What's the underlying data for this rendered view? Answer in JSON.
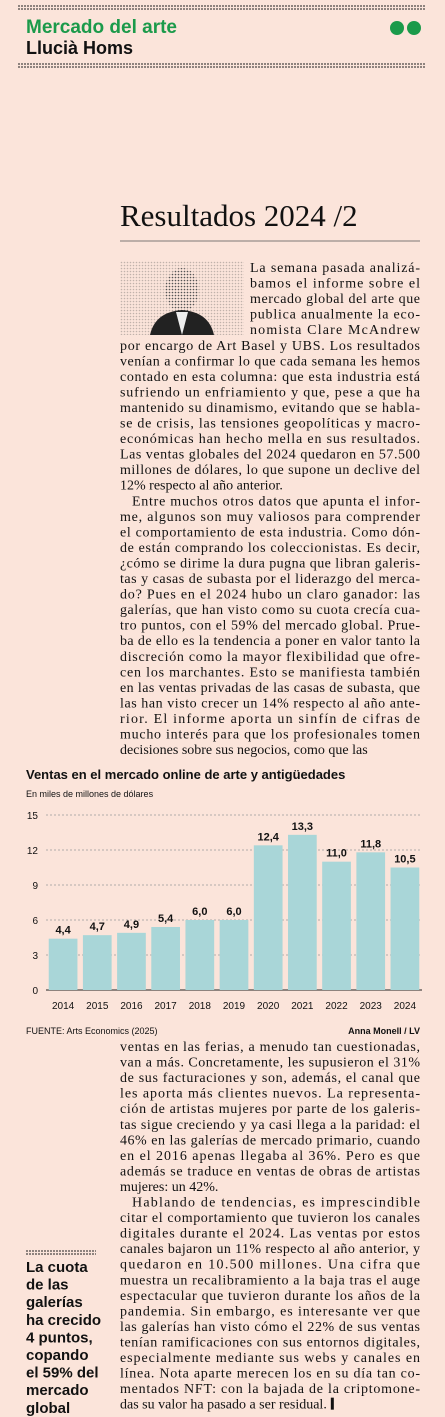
{
  "header": {
    "section": "Mercado del arte",
    "author": "Llucià Homs"
  },
  "article": {
    "title": "Resultados 2024 /2",
    "paragraphs": [
      {
        "lines": [
          "La semana pasada analizá-",
          "bamos el informe sobre el",
          "mercado global del arte que",
          "publica anualmente la eco-",
          "nomista Clare McAndrew",
          "por encargo de Art Basel y UBS. Los resultados",
          "venían a confirmar lo que cada semana les hemos",
          "contado en esta columna: que esta industria está",
          "sufriendo un enfriamiento y que, pese a que ha",
          "mantenido su dinamismo, evitando que se habla-",
          "se de crisis, las tensiones geopolíticas y macro-",
          "económicas han hecho mella en sus resultados.",
          "Las ventas globales del 2024 quedaron en 57.500",
          "millones de dólares, lo que supone un declive del",
          "12% respecto al año anterior."
        ]
      },
      {
        "lines": [
          "Entre muchos otros datos que apunta el infor-",
          "me, algunos son muy valiosos para comprender",
          "el comportamiento de esta industria. Como dón-",
          "de están comprando los coleccionistas. Es decir,",
          "¿cómo se dirime la dura pugna que libran galeris-",
          "tas y casas de subasta por el liderazgo del merca-",
          "do? Pues en el 2024 hubo un claro ganador: las",
          "galerías, que han visto como su cuota crecía cua-",
          "tro puntos, con el 59% del mercado global. Prue-",
          "ba de ello es la tendencia a poner en valor tanto la",
          "discreción como la mayor flexibilidad que ofre-",
          "cen los marchantes. Esto se manifiesta también",
          "en las ventas privadas de las casas de subasta, que",
          "las han visto crecer un 14% respecto al año ante-",
          "rior. El informe aporta un sinfín de cifras de",
          "mucho interés para que los profesionales tomen",
          "decisiones sobre sus negocios, como que las"
        ]
      },
      {
        "lines": [
          "ventas en las ferias, a menudo tan cuestionadas,",
          "van a más. Concretamente, les supusieron el 31%",
          "de sus facturaciones y son, además, el canal que",
          "les aporta más clientes nuevos. La representa-",
          "ción de artistas mujeres por parte de los galeris-",
          "tas sigue creciendo y ya casi llega a la paridad: el",
          "46% en las galerías de mercado primario, cuando",
          "en el 2016 apenas llegaba al 36%. Pero es que",
          "además se traduce en ventas de obras de artistas",
          "mujeres: un 42%."
        ]
      },
      {
        "lines": [
          "Hablando de tendencias, es imprescindible",
          "citar el comportamiento que tuvieron los canales",
          "digitales durante el 2024. Las ventas por estos",
          "canales bajaron un 11% respecto al año anterior, y",
          "quedaron en 10.500 millones. Una cifra que",
          "muestra un recalibramiento a la baja tras el auge",
          "espectacular que tuvieron durante los años de la",
          "pandemia. Sin embargo, es interesante ver que",
          "las galerías han visto cómo el 22% de sus ventas",
          "tenían ramificaciones con sus entornos digitales,",
          "especialmente mediante sus webs y canales en",
          "línea. Nota aparte merecen los en su día tan co-",
          "mentados NFT: con la bajada de la criptomone-",
          "das su valor ha pasado a ser residual."
        ]
      }
    ]
  },
  "chart_data": {
    "type": "bar",
    "title": "Ventas en el mercado online de arte y antigüedades",
    "subtitle": "En miles de millones de dólares",
    "categories": [
      "2014",
      "2015",
      "2016",
      "2017",
      "2018",
      "2019",
      "2020",
      "2021",
      "2022",
      "2023",
      "2024"
    ],
    "values": [
      4.4,
      4.7,
      4.9,
      5.4,
      6.0,
      6.0,
      12.4,
      13.3,
      11.0,
      11.8,
      10.5
    ],
    "value_labels": [
      "4,4",
      "4,7",
      "4,9",
      "5,4",
      "6,0",
      "6,0",
      "12,4",
      "13,3",
      "11,0",
      "11,8",
      "10,5"
    ],
    "color": "#a9d6d8",
    "ylim": [
      0,
      15
    ],
    "yticks": [
      0,
      3,
      6,
      9,
      12,
      15
    ],
    "grid": true,
    "source": "FUENTE: Arts Economics (2025)",
    "credit": "Anna Monell / LV"
  },
  "pull_quote": {
    "lines": [
      "La cuota",
      "de las",
      "galerías",
      "ha crecido",
      "4 puntos,",
      "copando",
      "el 59% del",
      "mercado",
      "global"
    ]
  }
}
